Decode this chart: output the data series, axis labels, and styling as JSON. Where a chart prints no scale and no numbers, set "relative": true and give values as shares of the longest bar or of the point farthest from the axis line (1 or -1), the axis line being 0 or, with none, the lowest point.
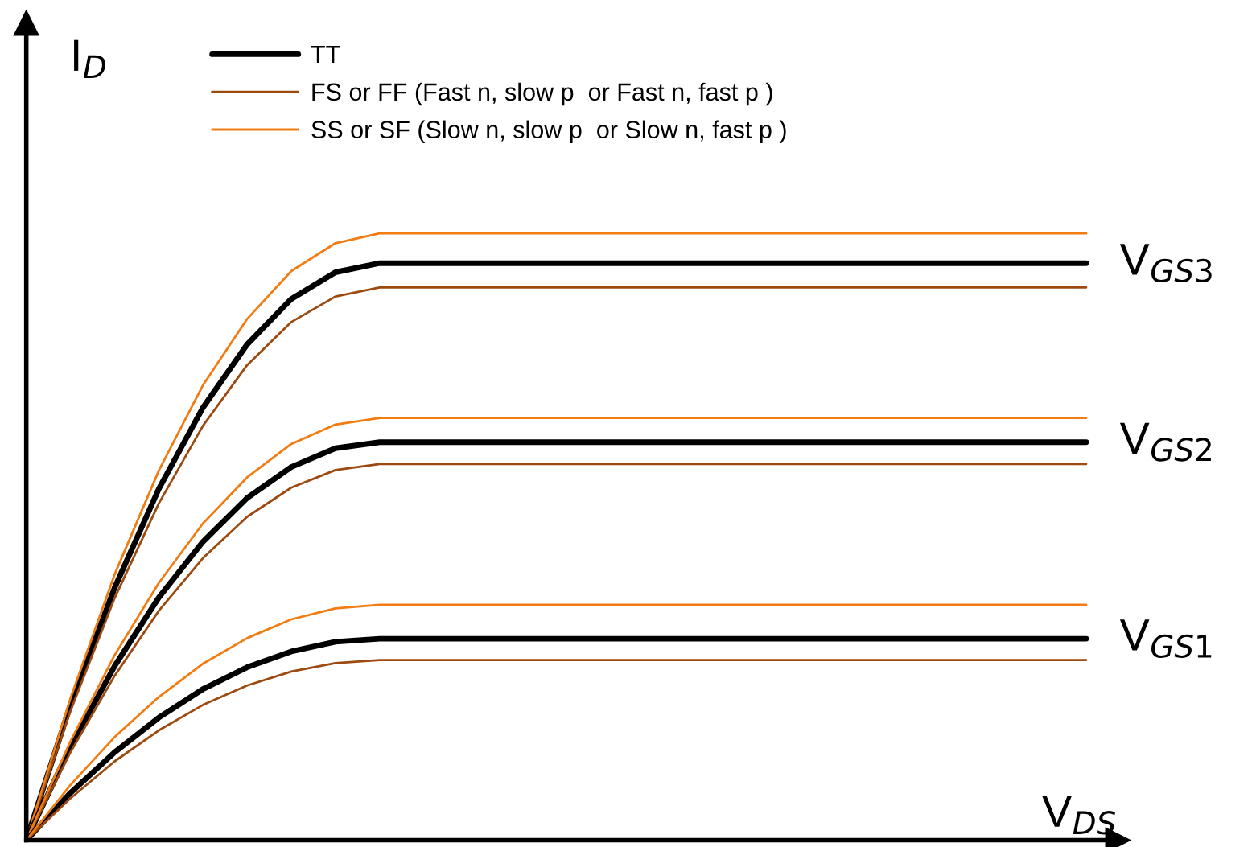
{
  "chart_data": {
    "type": "line",
    "relative": true,
    "xlabel": "V$_{DS}$",
    "ylabel": "I$_{D}$",
    "legend": "top",
    "marker": "none",
    "line_style": "solid",
    "categories": [
      null,
      null,
      null,
      null,
      null,
      null,
      null,
      null,
      null,
      null,
      null,
      null,
      null,
      null,
      null,
      null,
      null,
      null,
      null,
      null,
      null,
      null,
      null,
      null,
      null
    ],
    "series": [
      {
        "name": "TT",
        "color": "#000000",
        "values": [
          0,
          0.223,
          0.416,
          0.579,
          0.713,
          0.817,
          0.892,
          0.936,
          0.951,
          0.951,
          0.951,
          0.951,
          0.951,
          0.951,
          0.951,
          0.951,
          0.951,
          0.951,
          0.951,
          0.951,
          0.951,
          0.951,
          0.951,
          0.951,
          0.951
        ]
      },
      {
        "name": "FS or FF (Fast n, slow p  or Fast n, fast p )",
        "color": "#9c4a10",
        "values": [
          0,
          0.213,
          0.399,
          0.555,
          0.683,
          0.783,
          0.854,
          0.896,
          0.911,
          0.911,
          0.911,
          0.911,
          0.911,
          0.911,
          0.911,
          0.911,
          0.911,
          0.911,
          0.911,
          0.911,
          0.911,
          0.911,
          0.911,
          0.911,
          0.911
        ]
      },
      {
        "name": "SS or SF (Slow n, slow p  or Slow n, fast p )",
        "color": "#f07c12",
        "values": [
          0,
          0.234,
          0.438,
          0.609,
          0.75,
          0.859,
          0.938,
          0.984,
          1,
          1,
          1,
          1,
          1,
          1,
          1,
          1,
          1,
          1,
          1,
          1,
          1,
          1,
          1,
          1,
          1
        ]
      },
      {
        "color": "#000000",
        "values": [
          0,
          0.154,
          0.287,
          0.4,
          0.492,
          0.564,
          0.615,
          0.646,
          0.656,
          0.656,
          0.656,
          0.656,
          0.656,
          0.656,
          0.656,
          0.656,
          0.656,
          0.656,
          0.656,
          0.656,
          0.656,
          0.656,
          0.656,
          0.656,
          0.656
        ]
      },
      {
        "color": "#9c4a10",
        "values": [
          0,
          0.145,
          0.271,
          0.378,
          0.465,
          0.533,
          0.581,
          0.61,
          0.62,
          0.62,
          0.62,
          0.62,
          0.62,
          0.62,
          0.62,
          0.62,
          0.62,
          0.62,
          0.62,
          0.62,
          0.62,
          0.62,
          0.62,
          0.62,
          0.62
        ]
      },
      {
        "color": "#f07c12",
        "values": [
          0,
          0.163,
          0.305,
          0.424,
          0.522,
          0.598,
          0.653,
          0.685,
          0.696,
          0.696,
          0.696,
          0.696,
          0.696,
          0.696,
          0.696,
          0.696,
          0.696,
          0.696,
          0.696,
          0.696,
          0.696,
          0.696,
          0.696,
          0.696,
          0.696
        ]
      },
      {
        "color": "#000000",
        "values": [
          0,
          0.078,
          0.145,
          0.202,
          0.249,
          0.285,
          0.311,
          0.327,
          0.332,
          0.332,
          0.332,
          0.332,
          0.332,
          0.332,
          0.332,
          0.332,
          0.332,
          0.332,
          0.332,
          0.332,
          0.332,
          0.332,
          0.332,
          0.332,
          0.332
        ]
      },
      {
        "color": "#9c4a10",
        "values": [
          0,
          0.069,
          0.13,
          0.181,
          0.223,
          0.255,
          0.278,
          0.292,
          0.297,
          0.297,
          0.297,
          0.297,
          0.297,
          0.297,
          0.297,
          0.297,
          0.297,
          0.297,
          0.297,
          0.297,
          0.297,
          0.297,
          0.297,
          0.297,
          0.297
        ]
      },
      {
        "color": "#f07c12",
        "values": [
          0,
          0.091,
          0.17,
          0.236,
          0.291,
          0.333,
          0.364,
          0.382,
          0.388,
          0.388,
          0.388,
          0.388,
          0.388,
          0.388,
          0.388,
          0.388,
          0.388,
          0.388,
          0.388,
          0.388,
          0.388,
          0.388,
          0.388,
          0.388,
          0.388
        ]
      }
    ],
    "annotations": [
      "V$_{GS3}$",
      "V$_{GS2}$",
      "V$_{GS1}$"
    ]
  }
}
